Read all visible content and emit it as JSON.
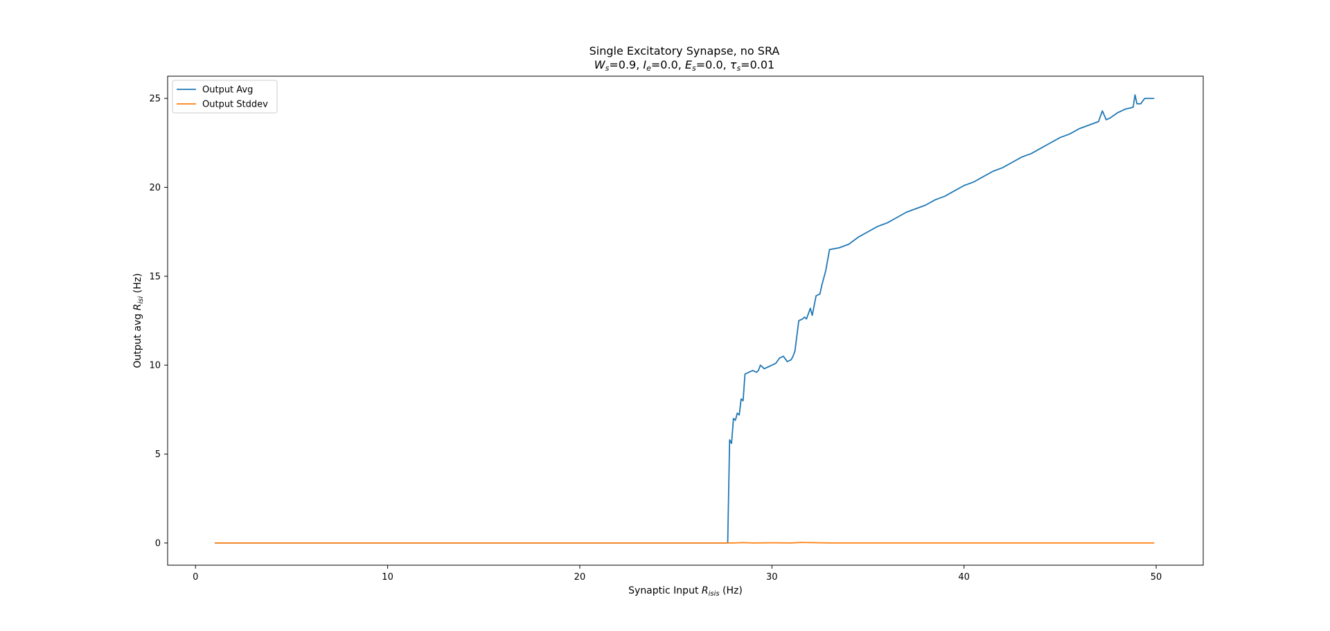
{
  "chart_data": {
    "type": "line",
    "title": "Single Excitatory Synapse, no SRA",
    "subtitle_parts": [
      {
        "sym": "W",
        "sub": "s",
        "val": "=0.9, "
      },
      {
        "sym": "I",
        "sub": "e",
        "val": "=0.0, "
      },
      {
        "sym": "E",
        "sub": "s",
        "val": "=0.0, "
      },
      {
        "sym": "τ",
        "sub": "s",
        "val": "=0.01"
      }
    ],
    "xlabel_main": "Synaptic Input ",
    "xlabel_sym": "R",
    "xlabel_sub": "isis",
    "xlabel_unit": " (Hz)",
    "ylabel_main": "Output avg ",
    "ylabel_sym": "R",
    "ylabel_sub": "isi",
    "ylabel_unit": " (Hz)",
    "xlim": [
      -1.45,
      52.45
    ],
    "ylim": [
      -1.25,
      26.25
    ],
    "xticks": [
      0,
      10,
      20,
      30,
      40,
      50
    ],
    "yticks": [
      0,
      5,
      10,
      15,
      20,
      25
    ],
    "legend_position": "upper-left",
    "series": [
      {
        "name": "Output Avg",
        "color": "#1f77b4",
        "x": [
          1.0,
          27.6,
          27.7,
          27.8,
          27.9,
          28.0,
          28.1,
          28.2,
          28.3,
          28.4,
          28.5,
          28.6,
          28.8,
          29.0,
          29.2,
          29.3,
          29.4,
          29.6,
          29.8,
          30.0,
          30.2,
          30.4,
          30.6,
          30.8,
          31.0,
          31.1,
          31.2,
          31.4,
          31.6,
          31.7,
          31.8,
          32.0,
          32.1,
          32.3,
          32.5,
          32.6,
          32.8,
          33.0,
          33.5,
          34.0,
          34.5,
          35.0,
          35.5,
          36.0,
          36.5,
          37.0,
          37.5,
          38.0,
          38.5,
          39.0,
          39.5,
          40.0,
          40.5,
          41.0,
          41.5,
          42.0,
          42.5,
          43.0,
          43.5,
          44.0,
          44.5,
          45.0,
          45.5,
          46.0,
          46.5,
          47.0,
          47.2,
          47.4,
          47.6,
          48.0,
          48.4,
          48.8,
          48.9,
          49.0,
          49.2,
          49.4,
          49.6,
          49.9
        ],
        "y": [
          0.0,
          0.0,
          0.0,
          5.8,
          5.6,
          7.0,
          6.9,
          7.3,
          7.2,
          8.1,
          8.0,
          9.5,
          9.6,
          9.7,
          9.6,
          9.7,
          10.0,
          9.8,
          9.9,
          10.0,
          10.1,
          10.4,
          10.5,
          10.2,
          10.3,
          10.5,
          10.8,
          12.5,
          12.6,
          12.7,
          12.6,
          13.2,
          12.8,
          13.9,
          14.0,
          14.5,
          15.3,
          16.5,
          16.6,
          16.8,
          17.2,
          17.5,
          17.8,
          18.0,
          18.3,
          18.6,
          18.8,
          19.0,
          19.3,
          19.5,
          19.8,
          20.1,
          20.3,
          20.6,
          20.9,
          21.1,
          21.4,
          21.7,
          21.9,
          22.2,
          22.5,
          22.8,
          23.0,
          23.3,
          23.5,
          23.7,
          24.3,
          23.8,
          23.9,
          24.2,
          24.4,
          24.5,
          25.2,
          24.7,
          24.7,
          25.0,
          25.0,
          25.0
        ]
      },
      {
        "name": "Output Stddev",
        "color": "#ff7f0e",
        "x": [
          1.0,
          28.0,
          28.5,
          29.0,
          30.0,
          31.0,
          31.5,
          32.0,
          32.5,
          33.0,
          49.9
        ],
        "y": [
          0.0,
          0.0,
          0.02,
          0.0,
          0.01,
          0.0,
          0.03,
          0.02,
          0.01,
          0.0,
          0.0
        ]
      }
    ]
  }
}
